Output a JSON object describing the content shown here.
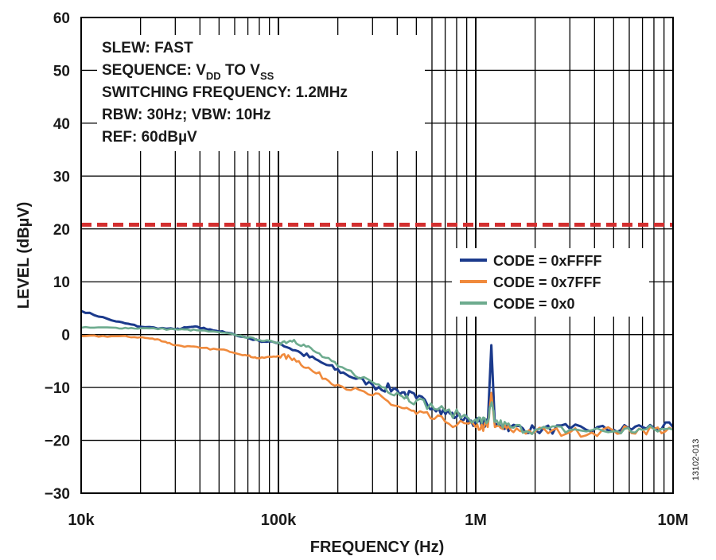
{
  "chart_data": {
    "type": "line",
    "xlabel": "FREQUENCY (Hz)",
    "ylabel": "LEVEL (dBµV)",
    "x_scale": "log",
    "xlim": [
      10000,
      10000000
    ],
    "ylim": [
      -30,
      60
    ],
    "grid": true,
    "x_ticks": [
      {
        "value": 10000,
        "label": "10k"
      },
      {
        "value": 100000,
        "label": "100k"
      },
      {
        "value": 1000000,
        "label": "1M"
      },
      {
        "value": 10000000,
        "label": "10M"
      }
    ],
    "y_ticks": [
      60,
      50,
      40,
      30,
      20,
      10,
      0,
      -10,
      -20,
      -30
    ],
    "annotations": [
      "SLEW: FAST",
      "SEQUENCE: VDD TO VSS",
      "SWITCHING FREQUENCY: 1.2MHz",
      "RBW: 30Hz; VBW: 10Hz",
      "REF: 60dBµV"
    ],
    "limit_line": {
      "y": 20.8,
      "color": "#d32f2f",
      "style": "dashed"
    },
    "legend_position": "right",
    "figure_id": "13102-013",
    "series": [
      {
        "name": "CODE = 0xFFFF",
        "color": "#1b3a8c",
        "points": [
          [
            10000,
            4.5
          ],
          [
            15000,
            2.5
          ],
          [
            20000,
            1.5
          ],
          [
            30000,
            1.0
          ],
          [
            37000,
            1.5
          ],
          [
            45000,
            1.0
          ],
          [
            60000,
            0
          ],
          [
            80000,
            -1.2
          ],
          [
            100000,
            -1.5
          ],
          [
            130000,
            -3.5
          ],
          [
            170000,
            -5.5
          ],
          [
            220000,
            -7.5
          ],
          [
            300000,
            -9.5
          ],
          [
            400000,
            -10.5
          ],
          [
            500000,
            -12
          ],
          [
            650000,
            -14
          ],
          [
            800000,
            -15.5
          ],
          [
            1000000,
            -16.5
          ],
          [
            1150000,
            -17
          ],
          [
            1200000,
            -2
          ],
          [
            1250000,
            -17
          ],
          [
            1500000,
            -17.5
          ],
          [
            2000000,
            -18
          ],
          [
            3000000,
            -17.8
          ],
          [
            5000000,
            -18
          ],
          [
            7000000,
            -17.5
          ],
          [
            10000000,
            -17.5
          ]
        ]
      },
      {
        "name": "CODE = 0x7FFF",
        "color": "#f08a3c",
        "points": [
          [
            10000,
            -0.3
          ],
          [
            15000,
            -0.3
          ],
          [
            20000,
            -0.5
          ],
          [
            25000,
            -1
          ],
          [
            30000,
            -2
          ],
          [
            40000,
            -2.5
          ],
          [
            55000,
            -3
          ],
          [
            70000,
            -4
          ],
          [
            80000,
            -4.5
          ],
          [
            100000,
            -4.0
          ],
          [
            120000,
            -4.5
          ],
          [
            150000,
            -7
          ],
          [
            200000,
            -9.5
          ],
          [
            300000,
            -11.5
          ],
          [
            400000,
            -13.5
          ],
          [
            500000,
            -15
          ],
          [
            700000,
            -16.5
          ],
          [
            1000000,
            -17.5
          ],
          [
            1150000,
            -17.5
          ],
          [
            1200000,
            -11
          ],
          [
            1250000,
            -17.5
          ],
          [
            1500000,
            -18
          ],
          [
            2000000,
            -18.3
          ],
          [
            3000000,
            -18.5
          ],
          [
            5000000,
            -18.2
          ],
          [
            7000000,
            -18
          ],
          [
            10000000,
            -18
          ]
        ]
      },
      {
        "name": "CODE = 0x0",
        "color": "#6dab8e",
        "points": [
          [
            10000,
            1.3
          ],
          [
            15000,
            1.3
          ],
          [
            20000,
            1.2
          ],
          [
            30000,
            1.0
          ],
          [
            40000,
            0.8
          ],
          [
            60000,
            0
          ],
          [
            80000,
            -1
          ],
          [
            100000,
            -1.5
          ],
          [
            120000,
            -1
          ],
          [
            150000,
            -3
          ],
          [
            200000,
            -6
          ],
          [
            300000,
            -9
          ],
          [
            400000,
            -11
          ],
          [
            500000,
            -12.5
          ],
          [
            700000,
            -14.5
          ],
          [
            1000000,
            -16
          ],
          [
            1150000,
            -16.5
          ],
          [
            1200000,
            -13
          ],
          [
            1250000,
            -16.5
          ],
          [
            1500000,
            -17.5
          ],
          [
            2000000,
            -18
          ],
          [
            3000000,
            -18
          ],
          [
            5000000,
            -18.3
          ],
          [
            7000000,
            -18
          ],
          [
            10000000,
            -18
          ]
        ]
      }
    ]
  }
}
